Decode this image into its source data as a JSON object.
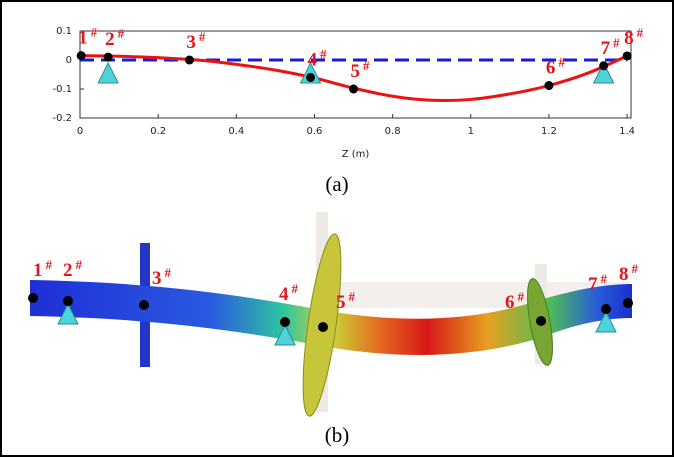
{
  "chart_data": {
    "type": "line",
    "x_label": "Z (m)",
    "xlim": [
      0,
      1.41
    ],
    "ylim": [
      -0.2,
      0.1
    ],
    "xticks": [
      0,
      0.2,
      0.4,
      0.6,
      0.8,
      1,
      1.2,
      1.4
    ],
    "yticks": [
      0.1,
      0,
      -0.1,
      -0.2
    ],
    "curve": {
      "color": "#ee1111",
      "x": [
        0,
        0.1,
        0.2,
        0.3,
        0.4,
        0.5,
        0.6,
        0.7,
        0.8,
        0.9,
        1.0,
        1.1,
        1.2,
        1.3,
        1.4
      ],
      "values": [
        0.015,
        0.013,
        0.008,
        0.0,
        -0.015,
        -0.035,
        -0.062,
        -0.097,
        -0.125,
        -0.139,
        -0.136,
        -0.117,
        -0.088,
        -0.045,
        0.014
      ]
    },
    "baseline": {
      "color": "#1a1adf",
      "x": [
        0,
        1.4
      ],
      "values": [
        0,
        0
      ]
    },
    "points": {
      "color": "#000000",
      "x": [
        0.003,
        0.072,
        0.28,
        0.59,
        0.7,
        1.2,
        1.34,
        1.4
      ],
      "values": [
        0.015,
        0.01,
        0,
        -0.06,
        -0.1,
        -0.088,
        -0.02,
        0.014
      ]
    },
    "point_labels": [
      "1",
      "2",
      "3",
      "4",
      "5",
      "6",
      "7",
      "8"
    ],
    "label_mark": "#",
    "support_x": [
      0.072,
      0.59,
      1.34
    ],
    "support_color": "#4fd3da",
    "caption": "(a)"
  },
  "panel_b": {
    "caption": "(b)"
  }
}
